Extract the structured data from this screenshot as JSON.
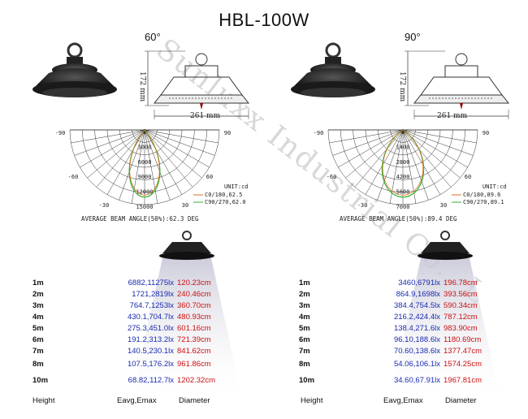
{
  "title": "HBL-100W",
  "watermark": "Sunluxx Industrial Co., L",
  "left": {
    "angle_label": "60°",
    "dims": {
      "height": "172 mm",
      "width": "261 mm"
    },
    "polar": {
      "ticks": [
        "0",
        "3000",
        "6000",
        "9000",
        "12000",
        "15000"
      ],
      "angles": {
        "l90": "-90",
        "r90": "90",
        "l60": "-60",
        "r60": "60",
        "l30": "-30",
        "r30": "30",
        "zero_top": "0",
        "zero_bot": "0"
      },
      "unit": "UNIT:cd",
      "legend": [
        "C0/180,62.5",
        "C90/270,62.0"
      ]
    },
    "beam_text": "AVERAGE BEAM ANGLE(50%):62.3 DEG",
    "rows": [
      {
        "h": "1m",
        "e": "6882,11275lx",
        "d": "120.23cm"
      },
      {
        "h": "2m",
        "e": "1721,2819lx",
        "d": "240.46cm"
      },
      {
        "h": "3m",
        "e": "764.7,1253lx",
        "d": "360.70cm"
      },
      {
        "h": "4m",
        "e": "430.1,704.7lx",
        "d": "480.93cm"
      },
      {
        "h": "5m",
        "e": "275.3,451.0lx",
        "d": "601.16cm"
      },
      {
        "h": "6m",
        "e": "191.2,313.2lx",
        "d": "721.39cm"
      },
      {
        "h": "7m",
        "e": "140.5,230.1lx",
        "d": "841.62cm"
      },
      {
        "h": "8m",
        "e": "107.5,176.2lx",
        "d": "961.86cm"
      },
      {
        "h": "10m",
        "e": "68.82,112.7lx",
        "d": "1202.32cm"
      }
    ],
    "footer": {
      "height": "Height",
      "eavg": "Eavg,Emax",
      "diameter": "Diameter"
    }
  },
  "right": {
    "angle_label": "90°",
    "dims": {
      "height": "172 mm",
      "width": "261 mm"
    },
    "polar": {
      "ticks": [
        "0",
        "1400",
        "2800",
        "4200",
        "5600",
        "7000"
      ],
      "angles": {
        "l90": "-90",
        "r90": "90",
        "l60": "-60",
        "r60": "60",
        "l30": "-30",
        "r30": "30",
        "zero_top": "0",
        "zero_bot": "0"
      },
      "unit": "UNIT:cd",
      "legend": [
        "C0/180,89.6",
        "C90/270,89.1"
      ]
    },
    "beam_text": "AVERAGE BEAM ANGLE(50%):89.4 DEG",
    "rows": [
      {
        "h": "1m",
        "e": "3460,6791lx",
        "d": "196.78cm"
      },
      {
        "h": "2m",
        "e": "864.9,1698lx",
        "d": "393.56cm"
      },
      {
        "h": "3m",
        "e": "384.4,754.5lx",
        "d": "590.34cm"
      },
      {
        "h": "4m",
        "e": "216.2,424.4lx",
        "d": "787.12cm"
      },
      {
        "h": "5m",
        "e": "138.4,271.6lx",
        "d": "983.90cm"
      },
      {
        "h": "6m",
        "e": "96.10,188.6lx",
        "d": "1180.69cm"
      },
      {
        "h": "7m",
        "e": "70.60,138.6lx",
        "d": "1377.47cm"
      },
      {
        "h": "8m",
        "e": "54.06,106.1lx",
        "d": "1574.25cm"
      },
      {
        "h": "10m",
        "e": "34.60,67.91lx",
        "d": "1967.81cm"
      }
    ],
    "footer": {
      "height": "Height",
      "eavg": "Eavg,Emax",
      "diameter": "Diameter"
    }
  },
  "colors": {
    "eavg": "#1a2bb0",
    "diameter": "#cc1111",
    "curve_c0": "#e07020",
    "curve_c90": "#30b030"
  }
}
